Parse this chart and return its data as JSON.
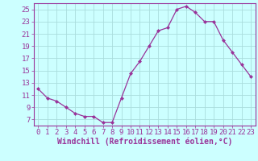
{
  "x": [
    0,
    1,
    2,
    3,
    4,
    5,
    6,
    7,
    8,
    9,
    10,
    11,
    12,
    13,
    14,
    15,
    16,
    17,
    18,
    19,
    20,
    21,
    22,
    23
  ],
  "y": [
    12.0,
    10.5,
    10.0,
    9.0,
    8.0,
    7.5,
    7.5,
    6.5,
    6.5,
    10.5,
    14.5,
    16.5,
    19.0,
    21.5,
    22.0,
    25.0,
    25.5,
    24.5,
    23.0,
    23.0,
    20.0,
    18.0,
    16.0,
    14.0
  ],
  "line_color": "#993399",
  "marker": "D",
  "marker_size": 2,
  "bg_color": "#ccffff",
  "grid_color": "#aadddd",
  "xlabel": "Windchill (Refroidissement éolien,°C)",
  "xlim": [
    -0.5,
    23.5
  ],
  "ylim": [
    6,
    26
  ],
  "yticks": [
    7,
    9,
    11,
    13,
    15,
    17,
    19,
    21,
    23,
    25
  ],
  "xticks": [
    0,
    1,
    2,
    3,
    4,
    5,
    6,
    7,
    8,
    9,
    10,
    11,
    12,
    13,
    14,
    15,
    16,
    17,
    18,
    19,
    20,
    21,
    22,
    23
  ],
  "tick_color": "#993399",
  "label_color": "#993399",
  "axis_color": "#993399",
  "font_size": 6.5,
  "xlabel_fontsize": 7
}
